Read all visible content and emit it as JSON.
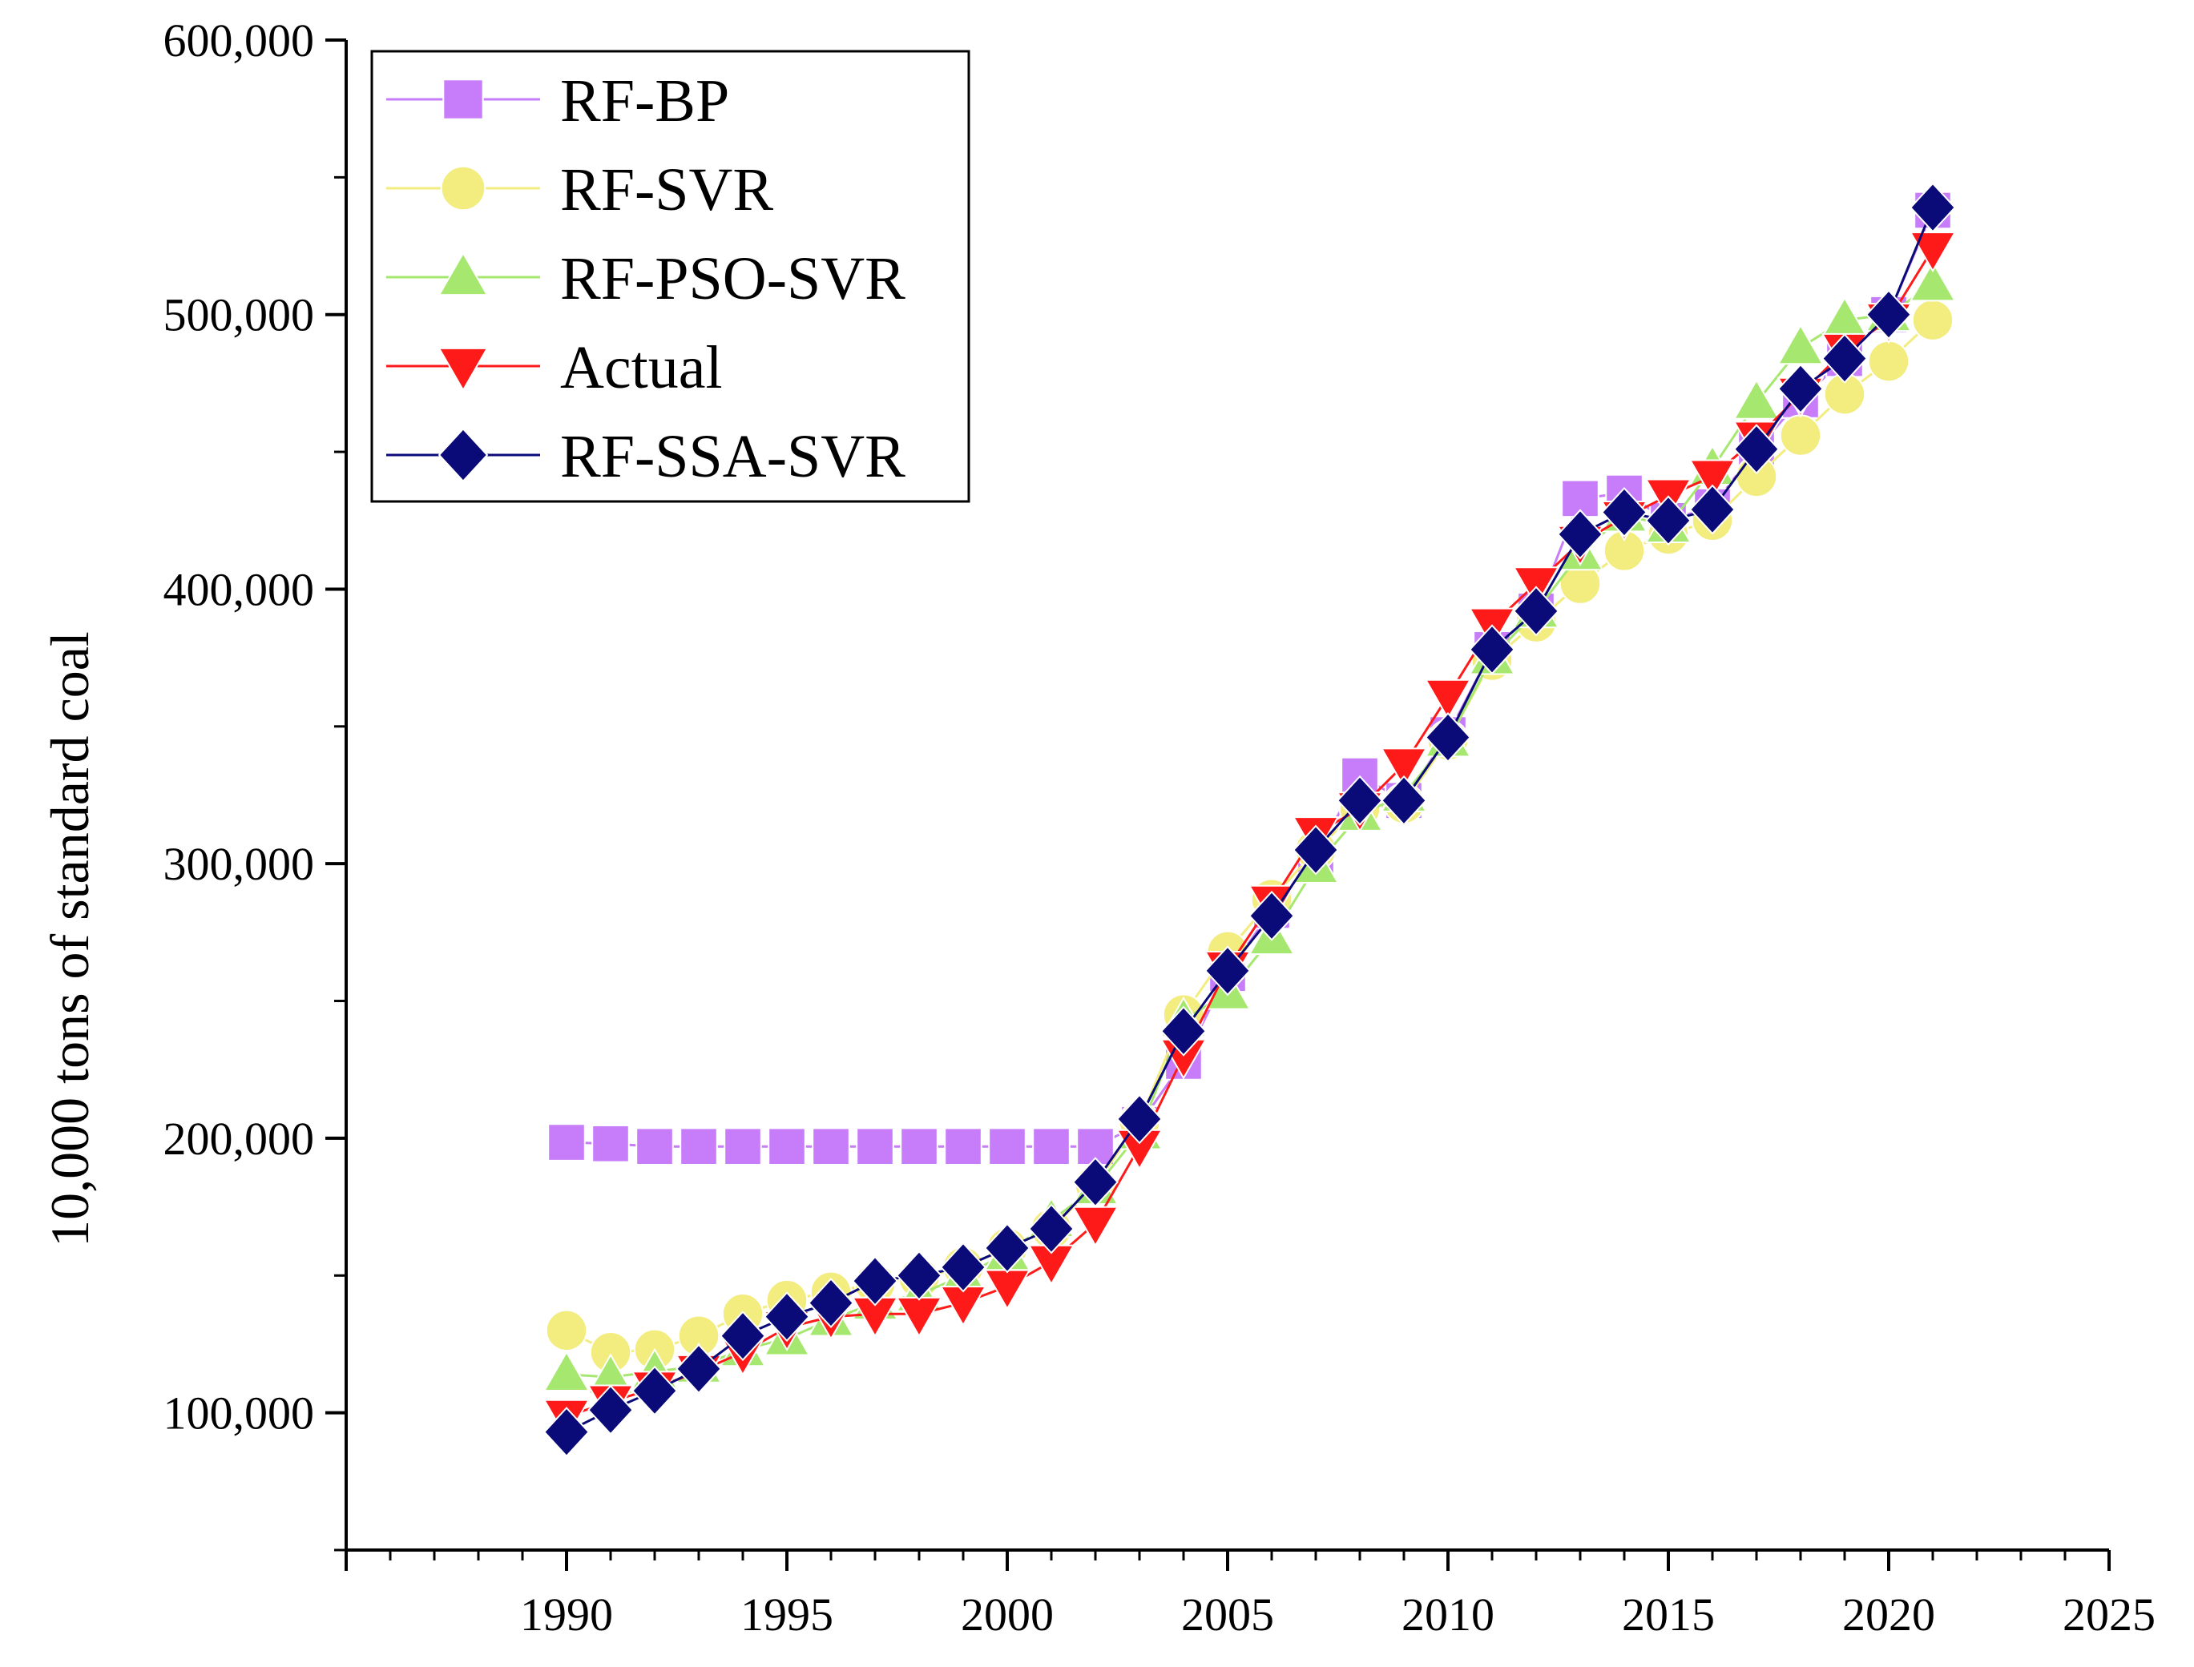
{
  "chart_data": {
    "type": "line",
    "title": "",
    "xlabel": "",
    "ylabel": "10,000 tons of standard coal",
    "xlim": [
      1985,
      2025
    ],
    "ylim": [
      50000,
      600000
    ],
    "x_ticks": [
      1990,
      1995,
      2000,
      2005,
      2010,
      2015,
      2020,
      2025
    ],
    "x_tick_labels": [
      "1990",
      "1995",
      "2000",
      "2005",
      "2010",
      "2015",
      "2020",
      "2025"
    ],
    "y_ticks": [
      100000,
      200000,
      300000,
      400000,
      500000,
      600000
    ],
    "y_tick_labels": [
      "100,000",
      "200,000",
      "300,000",
      "400,000",
      "500,000",
      "600,000"
    ],
    "grid": false,
    "legend_position": "top-left",
    "x": [
      1990,
      1991,
      1992,
      1993,
      1994,
      1995,
      1996,
      1997,
      1998,
      1999,
      2000,
      2001,
      2002,
      2003,
      2004,
      2005,
      2006,
      2007,
      2008,
      2009,
      2010,
      2011,
      2012,
      2013,
      2014,
      2015,
      2016,
      2017,
      2018,
      2019,
      2020,
      2021
    ],
    "series": [
      {
        "name": "RF-BP",
        "color": "#c77dfa",
        "marker": "square",
        "values": [
          198500,
          198000,
          197000,
          197000,
          197000,
          197000,
          197000,
          197000,
          197000,
          197000,
          197000,
          197000,
          197000,
          205000,
          228000,
          260000,
          283000,
          303000,
          332000,
          323000,
          347000,
          378000,
          392000,
          433000,
          435000,
          425000,
          430000,
          451000,
          469000,
          484000,
          500000,
          538000
        ]
      },
      {
        "name": "RF-SVR",
        "color": "#f3ec7e",
        "marker": "circle",
        "values": [
          130000,
          122000,
          123000,
          128000,
          136000,
          141000,
          144000,
          147000,
          149000,
          153000,
          160000,
          167000,
          183000,
          206000,
          245000,
          268000,
          287000,
          305000,
          320000,
          322000,
          345000,
          374000,
          388000,
          402000,
          414000,
          420000,
          425000,
          441000,
          456000,
          471000,
          483000,
          498000
        ]
      },
      {
        "name": "RF-PSO-SVR",
        "color": "#a6e86f",
        "marker": "triangle-up",
        "values": [
          114000,
          113000,
          115000,
          117000,
          123000,
          127000,
          134000,
          140000,
          143000,
          150000,
          158000,
          170000,
          182000,
          202000,
          243000,
          253000,
          273000,
          299000,
          318000,
          325000,
          345000,
          375000,
          392000,
          413000,
          427000,
          423000,
          444000,
          468000,
          488000,
          498000,
          500000,
          511000
        ]
      },
      {
        "name": "Actual",
        "color": "#ff1a1a",
        "marker": "triangle-down",
        "values": [
          98700,
          104000,
          109000,
          115000,
          122000,
          131000,
          135000,
          136000,
          136000,
          140000,
          146000,
          155000,
          169000,
          197000,
          230000,
          262000,
          286000,
          311000,
          320000,
          336000,
          361000,
          387000,
          402000,
          417000,
          426000,
          434000,
          441000,
          455000,
          471000,
          487000,
          498000,
          524000
        ]
      },
      {
        "name": "RF-SSA-SVR",
        "color": "#0a0a78",
        "marker": "diamond",
        "values": [
          93000,
          101000,
          108000,
          116000,
          128000,
          135000,
          140000,
          148000,
          150000,
          153000,
          160000,
          167000,
          184000,
          207000,
          239000,
          261000,
          281000,
          305000,
          323000,
          323000,
          346000,
          378000,
          392000,
          420000,
          428000,
          425000,
          429000,
          451000,
          473000,
          484000,
          500000,
          539000
        ]
      }
    ]
  }
}
